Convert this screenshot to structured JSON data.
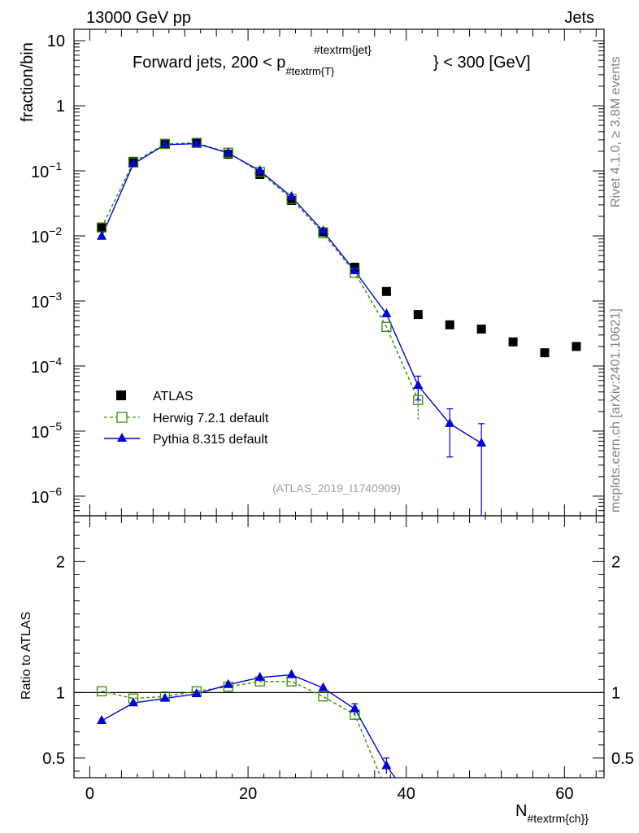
{
  "header": {
    "energy": "13000 GeV pp",
    "category": "Jets"
  },
  "side_labels": {
    "rivet": "Rivet 4.1.0, ≥ 3.8M events",
    "mcplots": "mcplots.cern.ch [arXiv:2401.10621]"
  },
  "colors": {
    "atlas": "#000000",
    "herwig": "#3a8c00",
    "pythia": "#0000dd"
  },
  "chart_data": [
    {
      "type": "scatter",
      "title_parts": {
        "pre": "Forward jets, 200 < p",
        "sub": "#textrm{T}",
        "sup": "#textrm{jet}",
        "post": "} < 300 [GeV]"
      },
      "ylabel": "fraction/bin",
      "yscale": "log",
      "ylim": [
        5e-07,
        15
      ],
      "xlim": [
        -2,
        65
      ],
      "ytick_labels": [
        {
          "value": 10,
          "label": "10"
        },
        {
          "value": 1,
          "label": "1"
        },
        {
          "value": 0.1,
          "base": "10",
          "exp": "−1"
        },
        {
          "value": 0.01,
          "base": "10",
          "exp": "−2"
        },
        {
          "value": 0.001,
          "base": "10",
          "exp": "−3"
        },
        {
          "value": 0.0001,
          "base": "10",
          "exp": "−4"
        },
        {
          "value": 1e-05,
          "base": "10",
          "exp": "−5"
        },
        {
          "value": 1e-06,
          "base": "10",
          "exp": "−6"
        }
      ],
      "watermark": "(ATLAS_2019_I1740909)",
      "series": [
        {
          "name": "ATLAS",
          "marker": "square-filled",
          "x": [
            1.5,
            5.5,
            9.5,
            13.5,
            17.5,
            21.5,
            25.5,
            29.5,
            33.5,
            37.5,
            41.5,
            45.5,
            49.5,
            53.5,
            57.5,
            61.5
          ],
          "y": [
            0.0135,
            0.14,
            0.265,
            0.265,
            0.18,
            0.088,
            0.035,
            0.0115,
            0.0033,
            0.0014,
            0.00062,
            0.00043,
            0.00037,
            0.000235,
            0.00016,
            0.0002
          ]
        },
        {
          "name": "Herwig 7.2.1 default",
          "marker": "square-open",
          "line": "dashed",
          "x": [
            1.5,
            5.5,
            9.5,
            13.5,
            17.5,
            21.5,
            25.5,
            29.5,
            33.5,
            37.5,
            41.5
          ],
          "y": [
            0.0135,
            0.135,
            0.258,
            0.27,
            0.19,
            0.096,
            0.037,
            0.011,
            0.0027,
            0.0004,
            3e-05
          ],
          "err": [
            0,
            0,
            0,
            0,
            0,
            0,
            0,
            0,
            0,
            0,
            1.5e-05
          ]
        },
        {
          "name": "Pythia 8.315 default",
          "marker": "triangle-filled",
          "line": "solid",
          "x": [
            1.5,
            5.5,
            9.5,
            13.5,
            17.5,
            21.5,
            25.5,
            29.5,
            33.5,
            37.5,
            41.5,
            45.5,
            49.5
          ],
          "y": [
            0.0098,
            0.128,
            0.252,
            0.262,
            0.188,
            0.1,
            0.04,
            0.0118,
            0.0029,
            0.00063,
            5e-05,
            1.3e-05,
            6.5e-06
          ],
          "err": [
            0,
            0,
            0,
            0,
            0,
            0,
            0,
            0,
            0,
            0,
            2e-05,
            9e-06,
            6.5e-06
          ]
        }
      ]
    },
    {
      "type": "line",
      "ylabel": "Ratio to ATLAS",
      "xlabel_parts": {
        "main": "N",
        "sub": "#textrm{ch}}"
      },
      "ylim": [
        0.35,
        2.35
      ],
      "xlim": [
        -2,
        65
      ],
      "xtick_labels": [
        "0",
        "20",
        "40",
        "60"
      ],
      "xticks": [
        0,
        20,
        40,
        60
      ],
      "ytick_labels": [
        "2",
        "1",
        "0.5"
      ],
      "yticks": [
        2,
        1,
        0.5
      ],
      "reference": 1,
      "series": [
        {
          "name": "Herwig 7.2.1 default",
          "x": [
            1.5,
            5.5,
            9.5,
            13.5,
            17.5,
            21.5,
            25.5,
            29.5,
            33.5
          ],
          "y": [
            1.01,
            0.955,
            0.97,
            1.01,
            1.045,
            1.085,
            1.085,
            0.97,
            0.83
          ],
          "err": [
            0,
            0,
            0,
            0,
            0,
            0,
            0,
            0,
            0.04
          ]
        },
        {
          "name": "Pythia 8.315 default",
          "x": [
            1.5,
            5.5,
            9.5,
            13.5,
            17.5,
            21.5,
            25.5,
            29.5,
            33.5,
            37.5
          ],
          "y": [
            0.785,
            0.92,
            0.955,
            0.99,
            1.06,
            1.115,
            1.135,
            1.035,
            0.875,
            0.44
          ],
          "err": [
            0,
            0,
            0,
            0,
            0,
            0,
            0,
            0,
            0.04,
            0.06
          ]
        }
      ]
    }
  ]
}
